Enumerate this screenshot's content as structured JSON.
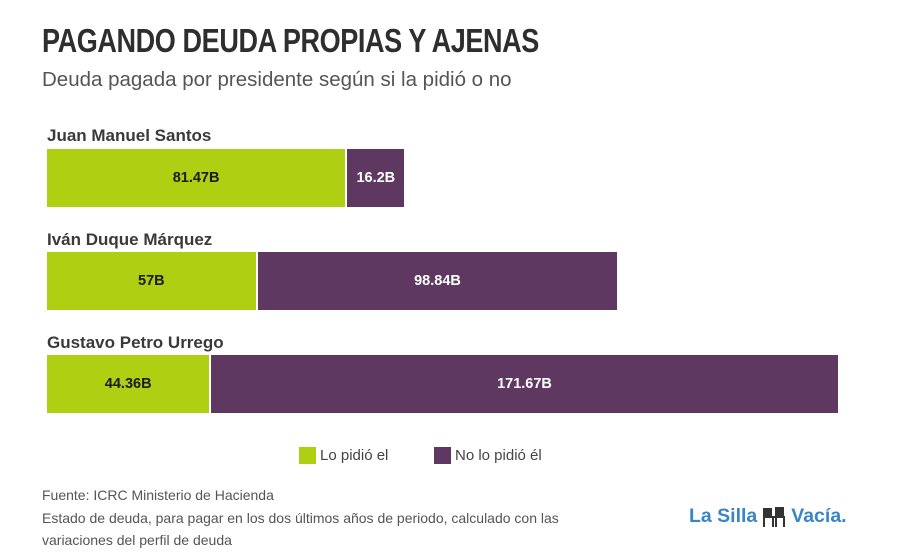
{
  "chart_data": {
    "type": "bar",
    "orientation": "horizontal",
    "stacked": true,
    "title": "PAGANDO DEUDA PROPIAS Y AJENAS",
    "subtitle": "Deuda pagada por presidente según si la pidió o no",
    "categories": [
      "Juan Manuel Santos",
      "Iván Duque Márquez",
      "Gustavo Petro Urrego"
    ],
    "series": [
      {
        "name": "Lo pidió el",
        "color": "#aecf12",
        "values": [
          81.47,
          57,
          44.36
        ],
        "labels": [
          "81.47B",
          "57B",
          "44.36B"
        ]
      },
      {
        "name": "No lo pidió él",
        "color": "#5e3860",
        "values": [
          16.2,
          98.84,
          171.67
        ],
        "labels": [
          "16.2B",
          "98.84B",
          "171.67B"
        ]
      }
    ],
    "unit": "B",
    "xlabel": "",
    "ylabel": "",
    "grid": false,
    "legend_position": "bottom-center"
  },
  "footer": {
    "source": "Fuente: ICRC Ministerio de Hacienda",
    "note_line1": "Estado de deuda, para pagar en los dos últimos años de periodo, calculado con las",
    "note_line2": "variaciones del perfil de deuda"
  },
  "logo": {
    "text_left": "La Silla",
    "text_right": "Vacía.",
    "icon": "chairs-icon",
    "color": "#3a85c8"
  }
}
